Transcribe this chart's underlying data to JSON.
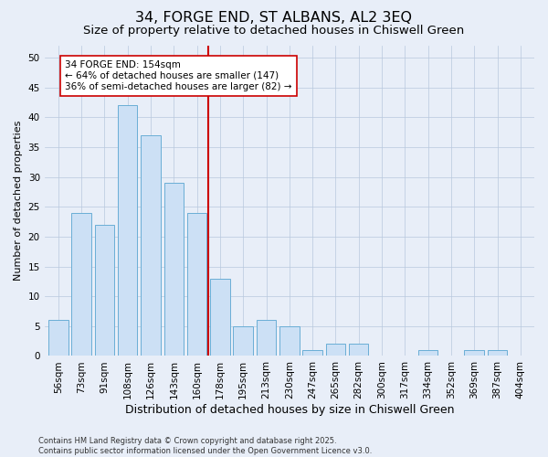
{
  "title": "34, FORGE END, ST ALBANS, AL2 3EQ",
  "subtitle": "Size of property relative to detached houses in Chiswell Green",
  "xlabel": "Distribution of detached houses by size in Chiswell Green",
  "ylabel": "Number of detached properties",
  "bins": [
    "56sqm",
    "73sqm",
    "91sqm",
    "108sqm",
    "126sqm",
    "143sqm",
    "160sqm",
    "178sqm",
    "195sqm",
    "213sqm",
    "230sqm",
    "247sqm",
    "265sqm",
    "282sqm",
    "300sqm",
    "317sqm",
    "334sqm",
    "352sqm",
    "369sqm",
    "387sqm",
    "404sqm"
  ],
  "bar_values": [
    6,
    24,
    22,
    42,
    37,
    29,
    24,
    13,
    5,
    6,
    5,
    1,
    2,
    2,
    0,
    0,
    1,
    0,
    1,
    1,
    0
  ],
  "bar_color": "#cce0f5",
  "bar_edge_color": "#6aaed6",
  "vline_color": "#cc0000",
  "annotation_line1": "34 FORGE END: 154sqm",
  "annotation_line2": "← 64% of detached houses are smaller (147)",
  "annotation_line3": "36% of semi-detached houses are larger (82) →",
  "annotation_box_color": "#ffffff",
  "annotation_box_edge": "#cc0000",
  "ylim": [
    0,
    52
  ],
  "yticks": [
    0,
    5,
    10,
    15,
    20,
    25,
    30,
    35,
    40,
    45,
    50
  ],
  "title_fontsize": 11.5,
  "subtitle_fontsize": 9.5,
  "xlabel_fontsize": 9,
  "ylabel_fontsize": 8,
  "tick_fontsize": 7.5,
  "annot_fontsize": 7.5,
  "footer": "Contains HM Land Registry data © Crown copyright and database right 2025.\nContains public sector information licensed under the Open Government Licence v3.0.",
  "footer_fontsize": 6,
  "bg_color": "#e8eef8",
  "plot_bg_color": "#e8eef8"
}
